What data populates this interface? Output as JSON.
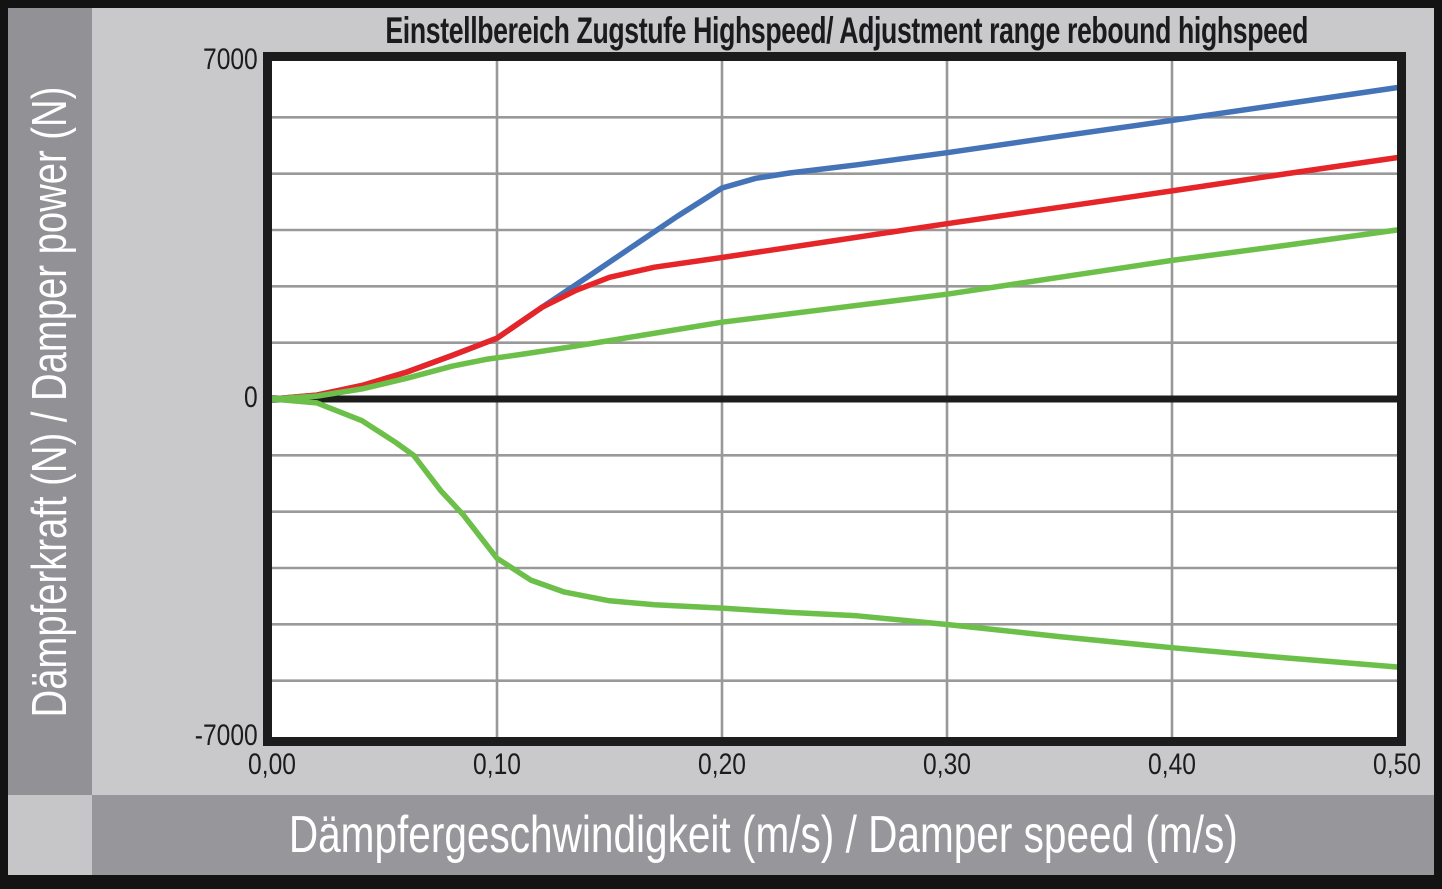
{
  "title": "Einstellbereich Zugstufe Highspeed/ Adjustment range rebound highspeed",
  "y_axis_label": "Dämpferkraft (N) / Damper power (N)",
  "x_axis_label": "Dämpfergeschwindigkeit (m/s) / Damper speed (m/s)",
  "colors": {
    "frame": "#1c1c1c",
    "zero_line": "#1c1c1c",
    "gridline": "#999999",
    "plot_background": "#ffffff",
    "page_background": "#c9c9cc",
    "band_background": "#97979b",
    "label_text": "#ffffff",
    "tick_text": "#1c1c1f"
  },
  "chart_data": {
    "type": "line",
    "title": "Einstellbereich Zugstufe Highspeed/ Adjustment range rebound highspeed",
    "xlabel": "Dämpfergeschwindigkeit (m/s) / Damper speed (m/s)",
    "ylabel": "Dämpferkraft (N) / Damper power (N)",
    "xlim": [
      0,
      0.5
    ],
    "ylim": [
      -7000,
      7000
    ],
    "grid": true,
    "legend": "none",
    "x_ticks": [
      {
        "value": 0.0,
        "label": "0,00"
      },
      {
        "value": 0.1,
        "label": "0,10"
      },
      {
        "value": 0.2,
        "label": "0,20"
      },
      {
        "value": 0.3,
        "label": "0,30"
      },
      {
        "value": 0.4,
        "label": "0,40"
      },
      {
        "value": 0.5,
        "label": "0,50"
      }
    ],
    "y_ticks": [
      {
        "value": 7000,
        "label": "7000"
      },
      {
        "value": 0,
        "label": "0"
      },
      {
        "value": -7000,
        "label": "-7000"
      }
    ],
    "x_grid_values": [
      0.1,
      0.2,
      0.3,
      0.4
    ],
    "y_grid_values": [
      5833.3,
      4666.7,
      3500,
      2333.3,
      1166.7,
      -1166.7,
      -2333.3,
      -3500,
      -4666.7,
      -5833.3
    ],
    "series": [
      {
        "name": "rebound-adjustment-maximum",
        "color": "#4473b8",
        "points": [
          [
            0,
            0
          ],
          [
            0.02,
            80
          ],
          [
            0.04,
            280
          ],
          [
            0.06,
            560
          ],
          [
            0.08,
            900
          ],
          [
            0.1,
            1260
          ],
          [
            0.12,
            1900
          ],
          [
            0.14,
            2520
          ],
          [
            0.16,
            3150
          ],
          [
            0.18,
            3780
          ],
          [
            0.2,
            4370
          ],
          [
            0.215,
            4570
          ],
          [
            0.23,
            4680
          ],
          [
            0.26,
            4850
          ],
          [
            0.3,
            5100
          ],
          [
            0.35,
            5440
          ],
          [
            0.4,
            5770
          ],
          [
            0.45,
            6110
          ],
          [
            0.5,
            6450
          ]
        ]
      },
      {
        "name": "rebound-adjustment-middle",
        "color": "#e62529",
        "points": [
          [
            0,
            0
          ],
          [
            0.02,
            80
          ],
          [
            0.04,
            280
          ],
          [
            0.06,
            560
          ],
          [
            0.08,
            900
          ],
          [
            0.1,
            1260
          ],
          [
            0.12,
            1900
          ],
          [
            0.135,
            2250
          ],
          [
            0.15,
            2520
          ],
          [
            0.17,
            2730
          ],
          [
            0.2,
            2930
          ],
          [
            0.25,
            3280
          ],
          [
            0.3,
            3630
          ],
          [
            0.35,
            3970
          ],
          [
            0.4,
            4310
          ],
          [
            0.45,
            4660
          ],
          [
            0.5,
            5000
          ]
        ]
      },
      {
        "name": "rebound-adjustment-minimum",
        "color": "#6cc04a",
        "points": [
          [
            0,
            0
          ],
          [
            0.02,
            60
          ],
          [
            0.04,
            210
          ],
          [
            0.06,
            430
          ],
          [
            0.08,
            680
          ],
          [
            0.095,
            820
          ],
          [
            0.11,
            920
          ],
          [
            0.13,
            1060
          ],
          [
            0.15,
            1210
          ],
          [
            0.2,
            1590
          ],
          [
            0.25,
            1880
          ],
          [
            0.3,
            2170
          ],
          [
            0.35,
            2520
          ],
          [
            0.4,
            2870
          ],
          [
            0.45,
            3180
          ],
          [
            0.5,
            3500
          ]
        ]
      },
      {
        "name": "lower-green-curve",
        "color": "#6cc04a",
        "points": [
          [
            0,
            0
          ],
          [
            0.02,
            -80
          ],
          [
            0.04,
            -450
          ],
          [
            0.055,
            -900
          ],
          [
            0.063,
            -1170
          ],
          [
            0.075,
            -1900
          ],
          [
            0.085,
            -2400
          ],
          [
            0.1,
            -3300
          ],
          [
            0.115,
            -3750
          ],
          [
            0.13,
            -4000
          ],
          [
            0.15,
            -4180
          ],
          [
            0.17,
            -4260
          ],
          [
            0.2,
            -4330
          ],
          [
            0.23,
            -4420
          ],
          [
            0.26,
            -4490
          ],
          [
            0.3,
            -4670
          ],
          [
            0.35,
            -4920
          ],
          [
            0.4,
            -5150
          ],
          [
            0.45,
            -5360
          ],
          [
            0.5,
            -5550
          ]
        ]
      }
    ]
  }
}
